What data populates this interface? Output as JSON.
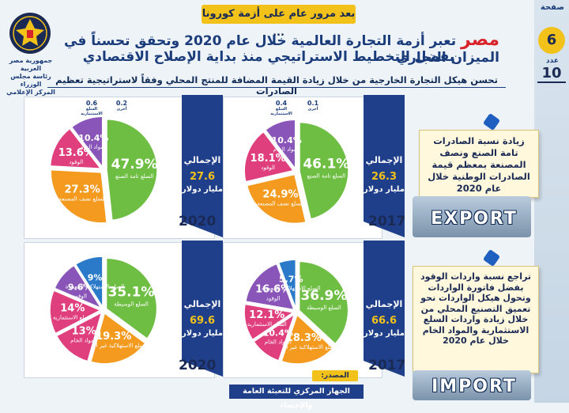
{
  "header": {
    "banner": "بعد مرور عام على أزمة كورونا ...",
    "headline_brand": "مصر",
    "headline_line1": "تعبر أزمة التجارة العالمية خلال عام 2020 وتحقق تحسناً في الميزان التجاري",
    "headline_line2": "بفضل التخطيط الاستراتيجي منذ بداية الإصلاح الاقتصادي",
    "subtitle": "تحسن هيكل التجارة الخارجية من خلال زيادة القيمة المضافة للمنتج المحلي وفقاً لاستراتيجية تعظيم الصادرات"
  },
  "side": {
    "page_label": "صفحة",
    "page_number": "6",
    "issue_label": "عدد",
    "issue_number": "10"
  },
  "logo": {
    "line1": "جمهورية مصر العربية",
    "line2": "رئاسة مجلس الوزراء",
    "line3": "المركز الإعلامي"
  },
  "colors": {
    "green": "#6fbe44",
    "orange": "#f39a1f",
    "pink": "#e03f7e",
    "purple": "#8a55b8",
    "blue": "#2a7ac9",
    "navy": "#1f3f8a",
    "yellow": "#f2c21a"
  },
  "notes": {
    "exports": "زيادة نسبة الصادرات تامة الصنع ونصف المصنعة بمعظم قيمة الصادرات الوطنية خلال عام 2020",
    "exports_word": "EXPORT",
    "imports": "تراجع نسبة واردات الوقود بفضل فاتورة الواردات وتحول هيكل الواردات نحو تعميق التصنيع المحلي من خلال زيادة واردات السلع الاستثمارية والمواد الخام خلال عام 2020",
    "imports_word": "IMPORT"
  },
  "source": {
    "label": "المصدر:",
    "text": "الجهاز المركزي للتعبئة العامة والإحصاء"
  },
  "panel_text": {
    "total_label": "الإجمالي",
    "unit": "مليار دولار"
  },
  "chart_data": [
    {
      "type": "pie",
      "id": "exports-2017",
      "year": "2017",
      "total": "26.3",
      "slices": [
        {
          "name": "السلع تامة الصنع",
          "value": 46.1,
          "label": "46.1",
          "color": "#6fbe44"
        },
        {
          "name": "السلع نصف المصنعة",
          "value": 24.9,
          "label": "24.9",
          "color": "#f39a1f"
        },
        {
          "name": "الوقود",
          "value": 18.1,
          "label": "18.1",
          "color": "#e03f7e"
        },
        {
          "name": "المواد الخام",
          "value": 10.4,
          "label": "10.4",
          "color": "#8a55b8"
        }
      ],
      "small": [
        {
          "name": "أخرى",
          "label": "0.1"
        },
        {
          "name": "السلع الاستثمارية",
          "label": "0.4"
        }
      ]
    },
    {
      "type": "pie",
      "id": "exports-2020",
      "year": "2020",
      "total": "27.6",
      "slices": [
        {
          "name": "السلع تامة الصنع",
          "value": 47.9,
          "label": "47.9",
          "color": "#6fbe44"
        },
        {
          "name": "السلع نصف المصنعة",
          "value": 27.3,
          "label": "27.3",
          "color": "#f39a1f"
        },
        {
          "name": "الوقود",
          "value": 13.6,
          "label": "13.6",
          "color": "#e03f7e"
        },
        {
          "name": "المواد الخام",
          "value": 10.4,
          "label": "10.4",
          "color": "#8a55b8"
        }
      ],
      "small": [
        {
          "name": "أخرى",
          "label": "0.2"
        },
        {
          "name": "السلع الاستثمارية",
          "label": "0.6"
        }
      ]
    },
    {
      "type": "pie",
      "id": "imports-2017",
      "year": "2017",
      "total": "66.6",
      "slices": [
        {
          "name": "السلع الوسيطة",
          "value": 36.9,
          "label": "36.9",
          "color": "#6fbe44"
        },
        {
          "name": "السلع الاستهلاكية غير المعمرة",
          "value": 18.3,
          "label": "18.3",
          "color": "#f39a1f"
        },
        {
          "name": "المواد الخام",
          "value": 10.4,
          "label": "10.4",
          "color": "#e03f7e"
        },
        {
          "name": "السلع الاستثمارية",
          "value": 12.1,
          "label": "12.1",
          "color": "#e03f7e"
        },
        {
          "name": "الوقود",
          "value": 16.6,
          "label": "16.6",
          "color": "#8a55b8"
        },
        {
          "name": "السلع الاستهلاكية المعمرة",
          "value": 5.7,
          "label": "5.7",
          "color": "#2a7ac9"
        }
      ]
    },
    {
      "type": "pie",
      "id": "imports-2020",
      "year": "2020",
      "total": "69.6",
      "slices": [
        {
          "name": "السلع الوسيطة",
          "value": 35.1,
          "label": "35.1",
          "color": "#6fbe44"
        },
        {
          "name": "السلع الاستهلاكية غير المعمرة",
          "value": 19.3,
          "label": "19.3",
          "color": "#f39a1f"
        },
        {
          "name": "المواد الخام",
          "value": 13,
          "label": "13",
          "color": "#e03f7e"
        },
        {
          "name": "السلع الاستثمارية",
          "value": 14,
          "label": "14",
          "color": "#e03f7e"
        },
        {
          "name": "الوقود",
          "value": 9.6,
          "label": "9.6",
          "color": "#8a55b8"
        },
        {
          "name": "السلع الاستهلاكية المعمرة",
          "value": 9,
          "label": "9",
          "color": "#2a7ac9"
        }
      ]
    }
  ]
}
